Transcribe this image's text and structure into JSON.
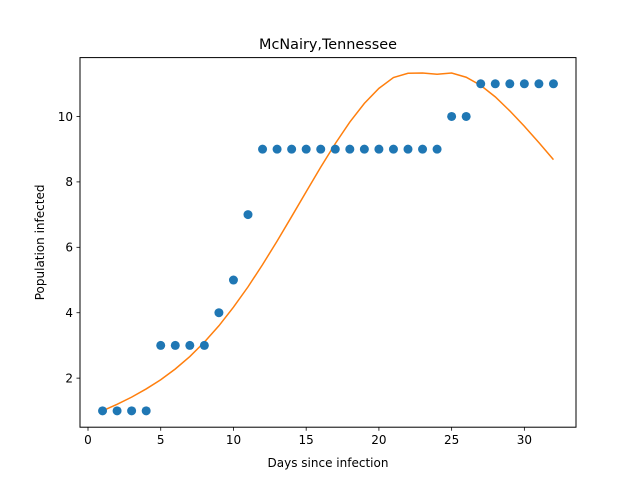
{
  "chart_data": {
    "type": "scatter",
    "title": "McNairy,Tennessee",
    "xlabel": "Days since infection",
    "ylabel": "Population infected",
    "xlim": [
      -0.55,
      33.55
    ],
    "ylim": [
      0.5,
      11.8
    ],
    "xticks": [
      0,
      5,
      10,
      15,
      20,
      25,
      30
    ],
    "yticks": [
      2,
      4,
      6,
      8,
      10
    ],
    "grid": false,
    "series": [
      {
        "kind": "scatter",
        "color": "#1f77b4",
        "x": [
          1,
          2,
          3,
          4,
          5,
          6,
          7,
          8,
          9,
          10,
          11,
          12,
          13,
          14,
          15,
          16,
          17,
          18,
          19,
          20,
          21,
          22,
          23,
          24,
          25,
          26,
          27,
          28,
          29,
          30,
          31,
          32
        ],
        "y": [
          1,
          1,
          1,
          1,
          3,
          3,
          3,
          3,
          4,
          5,
          7,
          9,
          9,
          9,
          9,
          9,
          9,
          9,
          9,
          9,
          9,
          9,
          9,
          9,
          10,
          10,
          11,
          11,
          11,
          11,
          11,
          11
        ]
      },
      {
        "kind": "line",
        "color": "#ff7f0e",
        "x": [
          1,
          2,
          3,
          4,
          5,
          6,
          7,
          8,
          9,
          10,
          11,
          12,
          13,
          14,
          15,
          16,
          17,
          18,
          19,
          20,
          21,
          22,
          23,
          24,
          25,
          26,
          27,
          28,
          29,
          30,
          31,
          32
        ],
        "y": [
          1.0,
          1.2,
          1.42,
          1.67,
          1.95,
          2.28,
          2.66,
          3.1,
          3.6,
          4.17,
          4.79,
          5.47,
          6.19,
          6.94,
          7.7,
          8.45,
          9.17,
          9.83,
          10.4,
          10.86,
          11.19,
          11.32,
          11.33,
          11.29,
          11.33,
          11.2,
          10.95,
          10.6,
          10.17,
          9.7,
          9.2,
          8.68
        ]
      }
    ]
  }
}
